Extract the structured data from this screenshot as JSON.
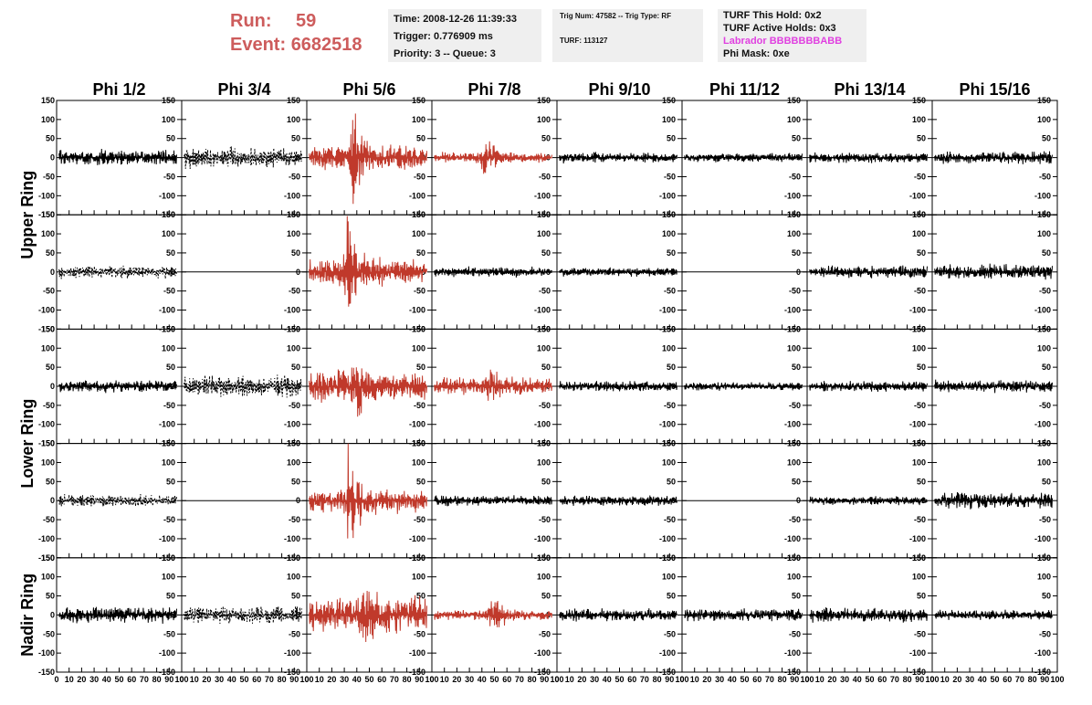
{
  "header": {
    "run_label": "Run:",
    "run_value": "59",
    "event_label": "Event:",
    "event_value": "6682518",
    "time": "Time: 2008-12-26 11:39:33",
    "trigger": "Trigger: 0.776909 ms",
    "priority": "Priority: 3 -- Queue: 3",
    "trig_num": "Trig Num: 47582 -- Trig Type: RF",
    "turf": "TURF: 113127",
    "turf_hold": "TURF This Hold: 0x2",
    "turf_active": "TURF Active Holds: 0x3",
    "labrador": "Labrador BBBBBBBABB",
    "phi_mask": "Phi Mask: 0xe",
    "labrador_color": "#e040e0",
    "run_color": "#cd5c5c"
  },
  "chart_data": {
    "type": "line",
    "columns": [
      "Phi 1/2",
      "Phi 3/4",
      "Phi 5/6",
      "Phi 7/8",
      "Phi 9/10",
      "Phi 11/12",
      "Phi 13/14",
      "Phi 15/16"
    ],
    "ring_labels": [
      "Upper Ring",
      "Lower Ring",
      "Nadir Ring"
    ],
    "rows": 5,
    "xlim": [
      0,
      100
    ],
    "ylim": [
      -150,
      150
    ],
    "x_ticks": [
      0,
      10,
      20,
      30,
      40,
      50,
      60,
      70,
      80,
      90,
      100
    ],
    "x_tick_labels": [
      "0",
      "10",
      "20",
      "30",
      "40",
      "50",
      "60",
      "70",
      "80",
      "90",
      "100"
    ],
    "y_ticks": [
      -150,
      -100,
      -50,
      0,
      50,
      100,
      150
    ],
    "y_tick_labels": [
      "-150",
      "-100",
      "-50",
      "0",
      "50",
      "100",
      "150"
    ],
    "trace_colors": {
      "normal": "#000000",
      "triggered": "#c0392b"
    },
    "panels": [
      {
        "row": 0,
        "col": 0,
        "style": "solid",
        "amp": 18,
        "burst": 0
      },
      {
        "row": 0,
        "col": 1,
        "style": "dashed",
        "amp": 25,
        "burst": 0
      },
      {
        "row": 0,
        "col": 2,
        "style": "red",
        "amp": 30,
        "burst": 100,
        "burst_x": 37
      },
      {
        "row": 0,
        "col": 3,
        "style": "red",
        "amp": 12,
        "burst": 55,
        "burst_x": 42
      },
      {
        "row": 0,
        "col": 4,
        "style": "solid",
        "amp": 12,
        "burst": 0
      },
      {
        "row": 0,
        "col": 5,
        "style": "solid",
        "amp": 10,
        "burst": 0
      },
      {
        "row": 0,
        "col": 6,
        "style": "solid",
        "amp": 12,
        "burst": 0
      },
      {
        "row": 0,
        "col": 7,
        "style": "solid",
        "amp": 14,
        "burst": 0
      },
      {
        "row": 1,
        "col": 0,
        "style": "dashed",
        "amp": 15,
        "burst": 0
      },
      {
        "row": 1,
        "col": 1,
        "style": "flat",
        "amp": 0,
        "burst": 0
      },
      {
        "row": 1,
        "col": 2,
        "style": "red",
        "amp": 30,
        "burst": 150,
        "burst_x": 32
      },
      {
        "row": 1,
        "col": 3,
        "style": "solid",
        "amp": 12,
        "burst": 0
      },
      {
        "row": 1,
        "col": 4,
        "style": "solid",
        "amp": 10,
        "burst": 0
      },
      {
        "row": 1,
        "col": 5,
        "style": "flat",
        "amp": 0,
        "burst": 0
      },
      {
        "row": 1,
        "col": 6,
        "style": "solid",
        "amp": 14,
        "burst": 0
      },
      {
        "row": 1,
        "col": 7,
        "style": "solid",
        "amp": 18,
        "burst": 0
      },
      {
        "row": 2,
        "col": 0,
        "style": "solid",
        "amp": 14,
        "burst": 0
      },
      {
        "row": 2,
        "col": 1,
        "style": "dashed",
        "amp": 25,
        "burst": 0
      },
      {
        "row": 2,
        "col": 2,
        "style": "red",
        "amp": 35,
        "burst": 60,
        "burst_x": 40
      },
      {
        "row": 2,
        "col": 3,
        "style": "red",
        "amp": 20,
        "burst": 35,
        "burst_x": 45
      },
      {
        "row": 2,
        "col": 4,
        "style": "solid",
        "amp": 12,
        "burst": 0
      },
      {
        "row": 2,
        "col": 5,
        "style": "solid",
        "amp": 10,
        "burst": 0
      },
      {
        "row": 2,
        "col": 6,
        "style": "solid",
        "amp": 12,
        "burst": 0
      },
      {
        "row": 2,
        "col": 7,
        "style": "solid",
        "amp": 14,
        "burst": 0
      },
      {
        "row": 3,
        "col": 0,
        "style": "dashed",
        "amp": 14,
        "burst": 0
      },
      {
        "row": 3,
        "col": 1,
        "style": "flat",
        "amp": 0,
        "burst": 0
      },
      {
        "row": 3,
        "col": 2,
        "style": "red",
        "amp": 28,
        "burst": 120,
        "burst_x": 33
      },
      {
        "row": 3,
        "col": 3,
        "style": "solid",
        "amp": 12,
        "burst": 0
      },
      {
        "row": 3,
        "col": 4,
        "style": "solid",
        "amp": 12,
        "burst": 0
      },
      {
        "row": 3,
        "col": 5,
        "style": "flat",
        "amp": 0,
        "burst": 0
      },
      {
        "row": 3,
        "col": 6,
        "style": "solid",
        "amp": 10,
        "burst": 0
      },
      {
        "row": 3,
        "col": 7,
        "style": "solid",
        "amp": 18,
        "burst": 0
      },
      {
        "row": 4,
        "col": 0,
        "style": "solid",
        "amp": 18,
        "burst": 0
      },
      {
        "row": 4,
        "col": 1,
        "style": "dashed",
        "amp": 20,
        "burst": 0
      },
      {
        "row": 4,
        "col": 2,
        "style": "red",
        "amp": 40,
        "burst": 60,
        "burst_x": 45
      },
      {
        "row": 4,
        "col": 3,
        "style": "red",
        "amp": 12,
        "burst": 60,
        "burst_x": 48
      },
      {
        "row": 4,
        "col": 4,
        "style": "solid",
        "amp": 14,
        "burst": 0
      },
      {
        "row": 4,
        "col": 5,
        "style": "solid",
        "amp": 14,
        "burst": 0
      },
      {
        "row": 4,
        "col": 6,
        "style": "solid",
        "amp": 16,
        "burst": 0
      },
      {
        "row": 4,
        "col": 7,
        "style": "solid",
        "amp": 12,
        "burst": 0
      }
    ]
  }
}
